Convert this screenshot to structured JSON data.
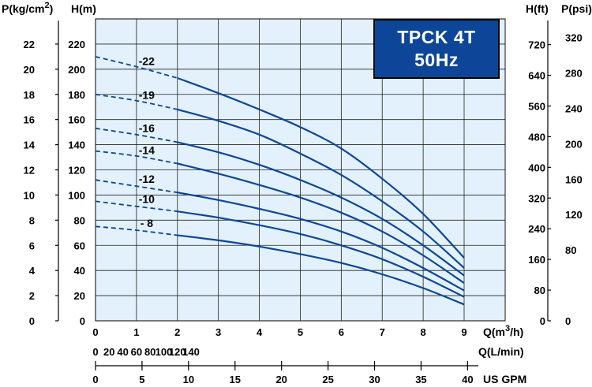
{
  "chart_data": {
    "type": "line",
    "title": "TPCK 4T",
    "subtitle": "50Hz",
    "x_axes": [
      {
        "label": "Q(m³/h)",
        "ticks": [
          "0",
          "1",
          "2",
          "3",
          "4",
          "5",
          "6",
          "7",
          "8",
          "9"
        ],
        "range": [
          0,
          9
        ]
      },
      {
        "label": "Q(L/min)",
        "ticks": [
          "0",
          "20",
          "40",
          "60",
          "80",
          "100",
          "120",
          "140"
        ],
        "range": [
          0,
          150
        ]
      },
      {
        "label": "US GPM",
        "ticks": [
          "0",
          "5",
          "10",
          "15",
          "20",
          "25",
          "30",
          "35",
          "40"
        ],
        "range": [
          0,
          39.6
        ]
      }
    ],
    "y_axes": [
      {
        "label": "H(m)",
        "side": "left",
        "ticks": [
          "0",
          "20",
          "40",
          "60",
          "80",
          "100",
          "120",
          "140",
          "160",
          "180",
          "200",
          "220"
        ],
        "range": [
          0,
          240
        ]
      },
      {
        "label": "P(kg/cm²)",
        "side": "left",
        "ticks": [
          "0",
          "2",
          "4",
          "6",
          "8",
          "10",
          "12",
          "14",
          "16",
          "18",
          "20",
          "22"
        ],
        "range": [
          0,
          24
        ]
      },
      {
        "label": "H(ft)",
        "side": "right",
        "ticks": [
          "0",
          "80",
          "160",
          "240",
          "320",
          "400",
          "480",
          "560",
          "640",
          "720"
        ],
        "range": [
          0,
          787
        ]
      },
      {
        "label": "P(psi)",
        "side": "right",
        "ticks": [
          "0",
          "80",
          "120",
          "160",
          "200",
          "240",
          "280",
          "320"
        ],
        "range": [
          0,
          341
        ]
      }
    ],
    "grid": true,
    "line_color": "#0d4699",
    "background": "#e2f1fb",
    "series": [
      {
        "name": "-22",
        "dashed_to_x": 2,
        "x": [
          0,
          1,
          2,
          3,
          4,
          5,
          6,
          7,
          8,
          9
        ],
        "y": [
          210,
          202,
          193,
          181,
          168,
          154,
          137,
          113,
          85,
          50
        ]
      },
      {
        "name": "-19",
        "dashed_to_x": 2,
        "x": [
          0,
          1,
          2,
          3,
          4,
          5,
          6,
          7,
          8,
          9
        ],
        "y": [
          180,
          175,
          168,
          159,
          148,
          133,
          116,
          95,
          71,
          42
        ]
      },
      {
        "name": "-16",
        "dashed_to_x": 2,
        "x": [
          0,
          1,
          2,
          3,
          4,
          5,
          6,
          7,
          8,
          9
        ],
        "y": [
          153,
          148,
          142,
          134,
          124,
          112,
          98,
          81,
          60,
          36
        ]
      },
      {
        "name": "-14",
        "dashed_to_x": 2,
        "x": [
          0,
          1,
          2,
          3,
          4,
          5,
          6,
          7,
          8,
          9
        ],
        "y": [
          135,
          131,
          125,
          117,
          108,
          98,
          86,
          71,
          52,
          30
        ]
      },
      {
        "name": "-12",
        "dashed_to_x": 2,
        "x": [
          0,
          1,
          2,
          3,
          4,
          5,
          6,
          7,
          8,
          9
        ],
        "y": [
          112,
          107,
          102,
          96,
          89,
          81,
          71,
          58,
          42,
          24
        ]
      },
      {
        "name": "-10",
        "dashed_to_x": 2,
        "x": [
          0,
          1,
          2,
          3,
          4,
          5,
          6,
          7,
          8,
          9
        ],
        "y": [
          95,
          91,
          87,
          82,
          76,
          69,
          60,
          49,
          35,
          19
        ]
      },
      {
        "name": "- 8",
        "dashed_to_x": 2,
        "x": [
          0,
          1,
          2,
          3,
          4,
          5,
          6,
          7,
          8,
          9
        ],
        "y": [
          75,
          72,
          68,
          64,
          59,
          53,
          46,
          37,
          26,
          13
        ]
      }
    ]
  }
}
